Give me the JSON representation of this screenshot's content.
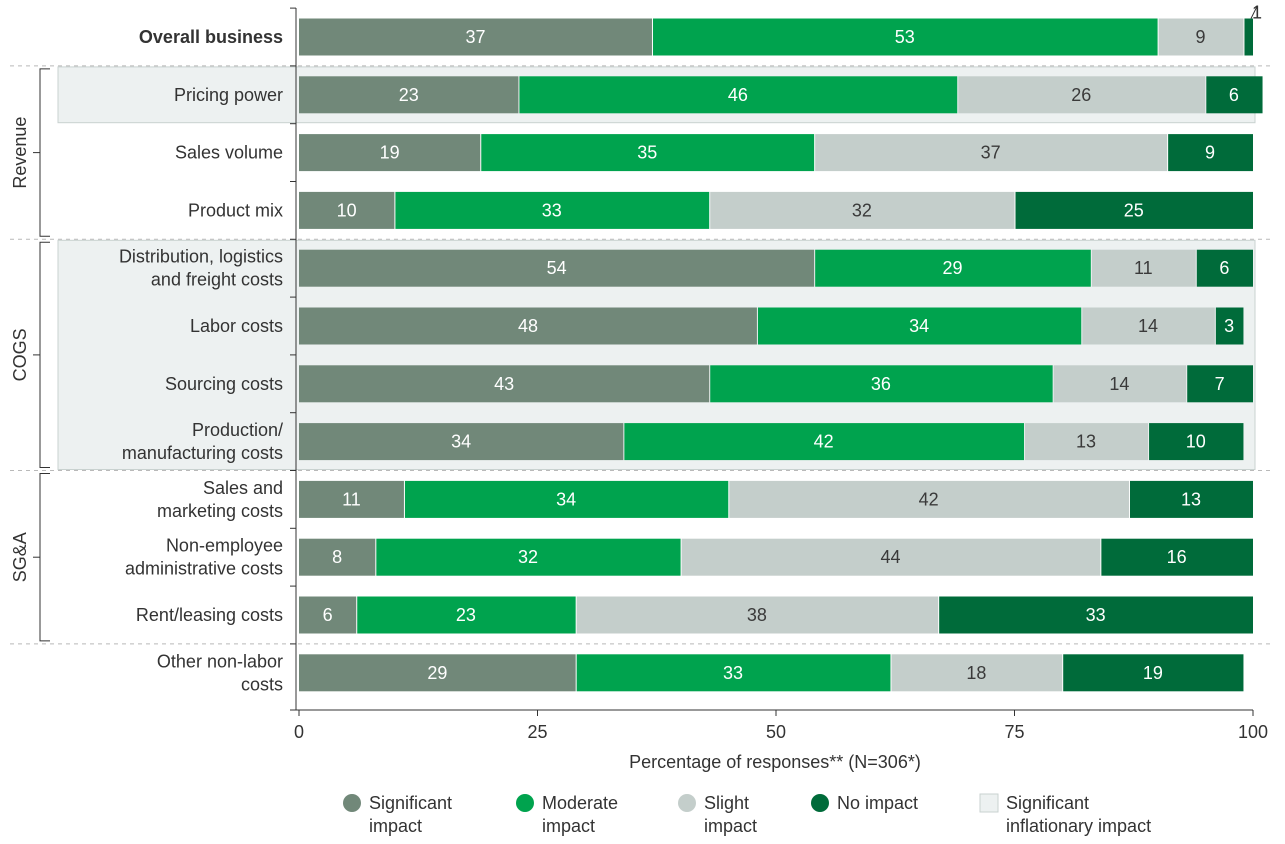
{
  "chart_data": {
    "type": "bar",
    "orientation": "horizontal",
    "stacked": true,
    "categories": [
      "Overall business",
      "Pricing power",
      "Sales volume",
      "Product mix",
      "Distribution, logistics\nand freight costs",
      "Labor costs",
      "Sourcing costs",
      "Production/\nmanufacturing costs",
      "Sales and\nmarketing costs",
      "Non-employee\nadministrative costs",
      "Rent/leasing costs",
      "Other non-labor\ncosts"
    ],
    "series": [
      {
        "name": "Significant\nimpact",
        "color": "#718879",
        "values": [
          37,
          23,
          19,
          10,
          54,
          48,
          43,
          34,
          11,
          8,
          6,
          29
        ]
      },
      {
        "name": "Moderate\nimpact",
        "color": "#00a34e",
        "values": [
          53,
          46,
          35,
          33,
          29,
          34,
          36,
          42,
          34,
          32,
          23,
          33
        ]
      },
      {
        "name": "Slight\nimpact",
        "color": "#c4cecb",
        "values": [
          9,
          26,
          37,
          32,
          11,
          14,
          14,
          13,
          42,
          44,
          38,
          18
        ]
      },
      {
        "name": "No impact",
        "color": "#006b3a",
        "values": [
          1,
          6,
          9,
          25,
          6,
          3,
          7,
          10,
          13,
          16,
          33,
          19
        ]
      }
    ],
    "groups": [
      {
        "label": "Revenue",
        "rows": [
          1,
          3
        ]
      },
      {
        "label": "COGS",
        "rows": [
          4,
          7
        ]
      },
      {
        "label": "SG&A",
        "rows": [
          8,
          10
        ]
      }
    ],
    "highlighted_rows": [
      [
        1,
        1
      ],
      [
        4,
        7
      ]
    ],
    "highlight_legend": {
      "name": "Significant\ninflationary impact",
      "color": "#edf1f1"
    },
    "bold_categories": [
      0
    ],
    "xlabel": "Percentage of responses** (N=306*)",
    "xlim": [
      0,
      100
    ],
    "xticks": [
      0,
      25,
      50,
      75,
      100
    ],
    "legend_position": "bottom",
    "grid": false
  }
}
